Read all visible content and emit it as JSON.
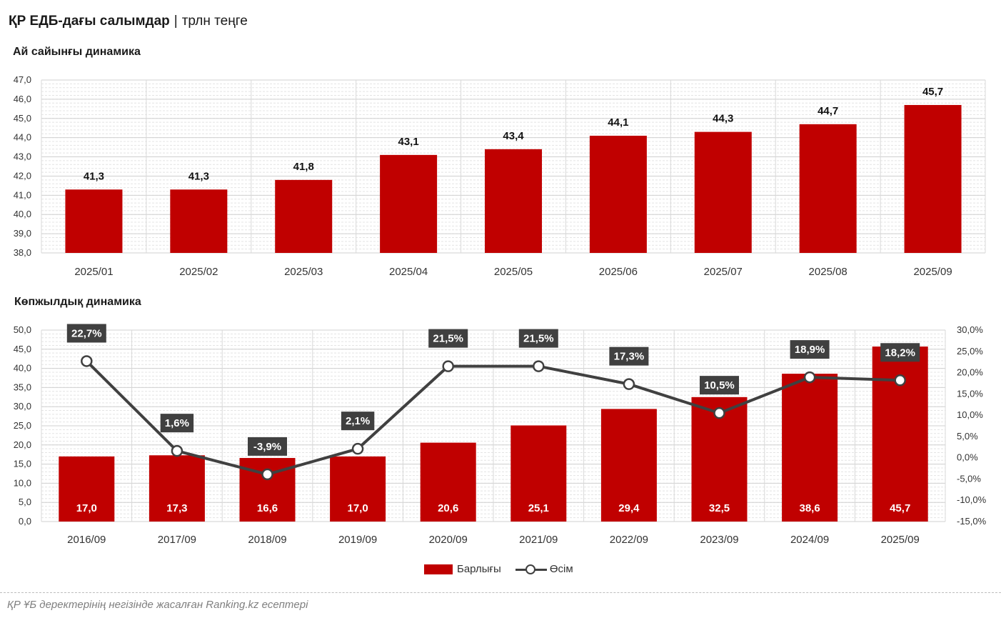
{
  "header": {
    "title": "ҚР ЕДБ-дағы салымдар",
    "separator": "|",
    "unit": "трлн теңге"
  },
  "colors": {
    "bar": "#c00000",
    "line": "#404040",
    "label_box": "#404040"
  },
  "chart_data": [
    {
      "type": "bar",
      "title": "Ай сайынғы динамика",
      "categories": [
        "2025/01",
        "2025/02",
        "2025/03",
        "2025/04",
        "2025/05",
        "2025/06",
        "2025/07",
        "2025/08",
        "2025/09"
      ],
      "values": [
        41.3,
        41.3,
        41.8,
        43.1,
        43.4,
        44.1,
        44.3,
        44.7,
        45.7
      ],
      "labels": [
        "41,3",
        "41,3",
        "41,8",
        "43,1",
        "43,4",
        "44,1",
        "44,3",
        "44,7",
        "45,7"
      ],
      "ylim": [
        38,
        47
      ],
      "yticks": [
        "38,0",
        "39,0",
        "40,0",
        "41,0",
        "42,0",
        "43,0",
        "44,0",
        "45,0",
        "46,0",
        "47,0"
      ],
      "grid": true
    },
    {
      "type": "bar+line",
      "title": "Көпжылдық динамика",
      "categories": [
        "2016/09",
        "2017/09",
        "2018/09",
        "2019/09",
        "2020/09",
        "2021/09",
        "2022/09",
        "2023/09",
        "2024/09",
        "2025/09"
      ],
      "series": [
        {
          "name": "Барлығы",
          "type": "bar",
          "axis": "left",
          "values": [
            17.0,
            17.3,
            16.6,
            17.0,
            20.6,
            25.1,
            29.4,
            32.5,
            38.6,
            45.7
          ],
          "labels": [
            "17,0",
            "17,3",
            "16,6",
            "17,0",
            "20,6",
            "25,1",
            "29,4",
            "32,5",
            "38,6",
            "45,7"
          ]
        },
        {
          "name": "Өсім",
          "type": "line",
          "axis": "right",
          "values": [
            22.7,
            1.6,
            -3.9,
            2.1,
            21.5,
            21.5,
            17.3,
            10.5,
            18.9,
            18.2
          ],
          "labels": [
            "22,7%",
            "1,6%",
            "-3,9%",
            "2,1%",
            "21,5%",
            "21,5%",
            "17,3%",
            "10,5%",
            "18,9%",
            "18,2%"
          ]
        }
      ],
      "ylim": [
        0,
        50
      ],
      "yticks": [
        "0,0",
        "5,0",
        "10,0",
        "15,0",
        "20,0",
        "25,0",
        "30,0",
        "35,0",
        "40,0",
        "45,0",
        "50,0"
      ],
      "y2lim": [
        -15,
        30
      ],
      "y2ticks": [
        "-15,0%",
        "-10,0%",
        "-5,0%",
        "0,0%",
        "5,0%",
        "10,0%",
        "15,0%",
        "20,0%",
        "25,0%",
        "30,0%"
      ],
      "legend": "bottom-center",
      "grid": true
    }
  ],
  "legend": {
    "bar_label": "Барлығы",
    "line_label": "Өсім"
  },
  "footer": {
    "source": "ҚР ҰБ деректерінің негізінде жасалған Ranking.kz есептері"
  }
}
